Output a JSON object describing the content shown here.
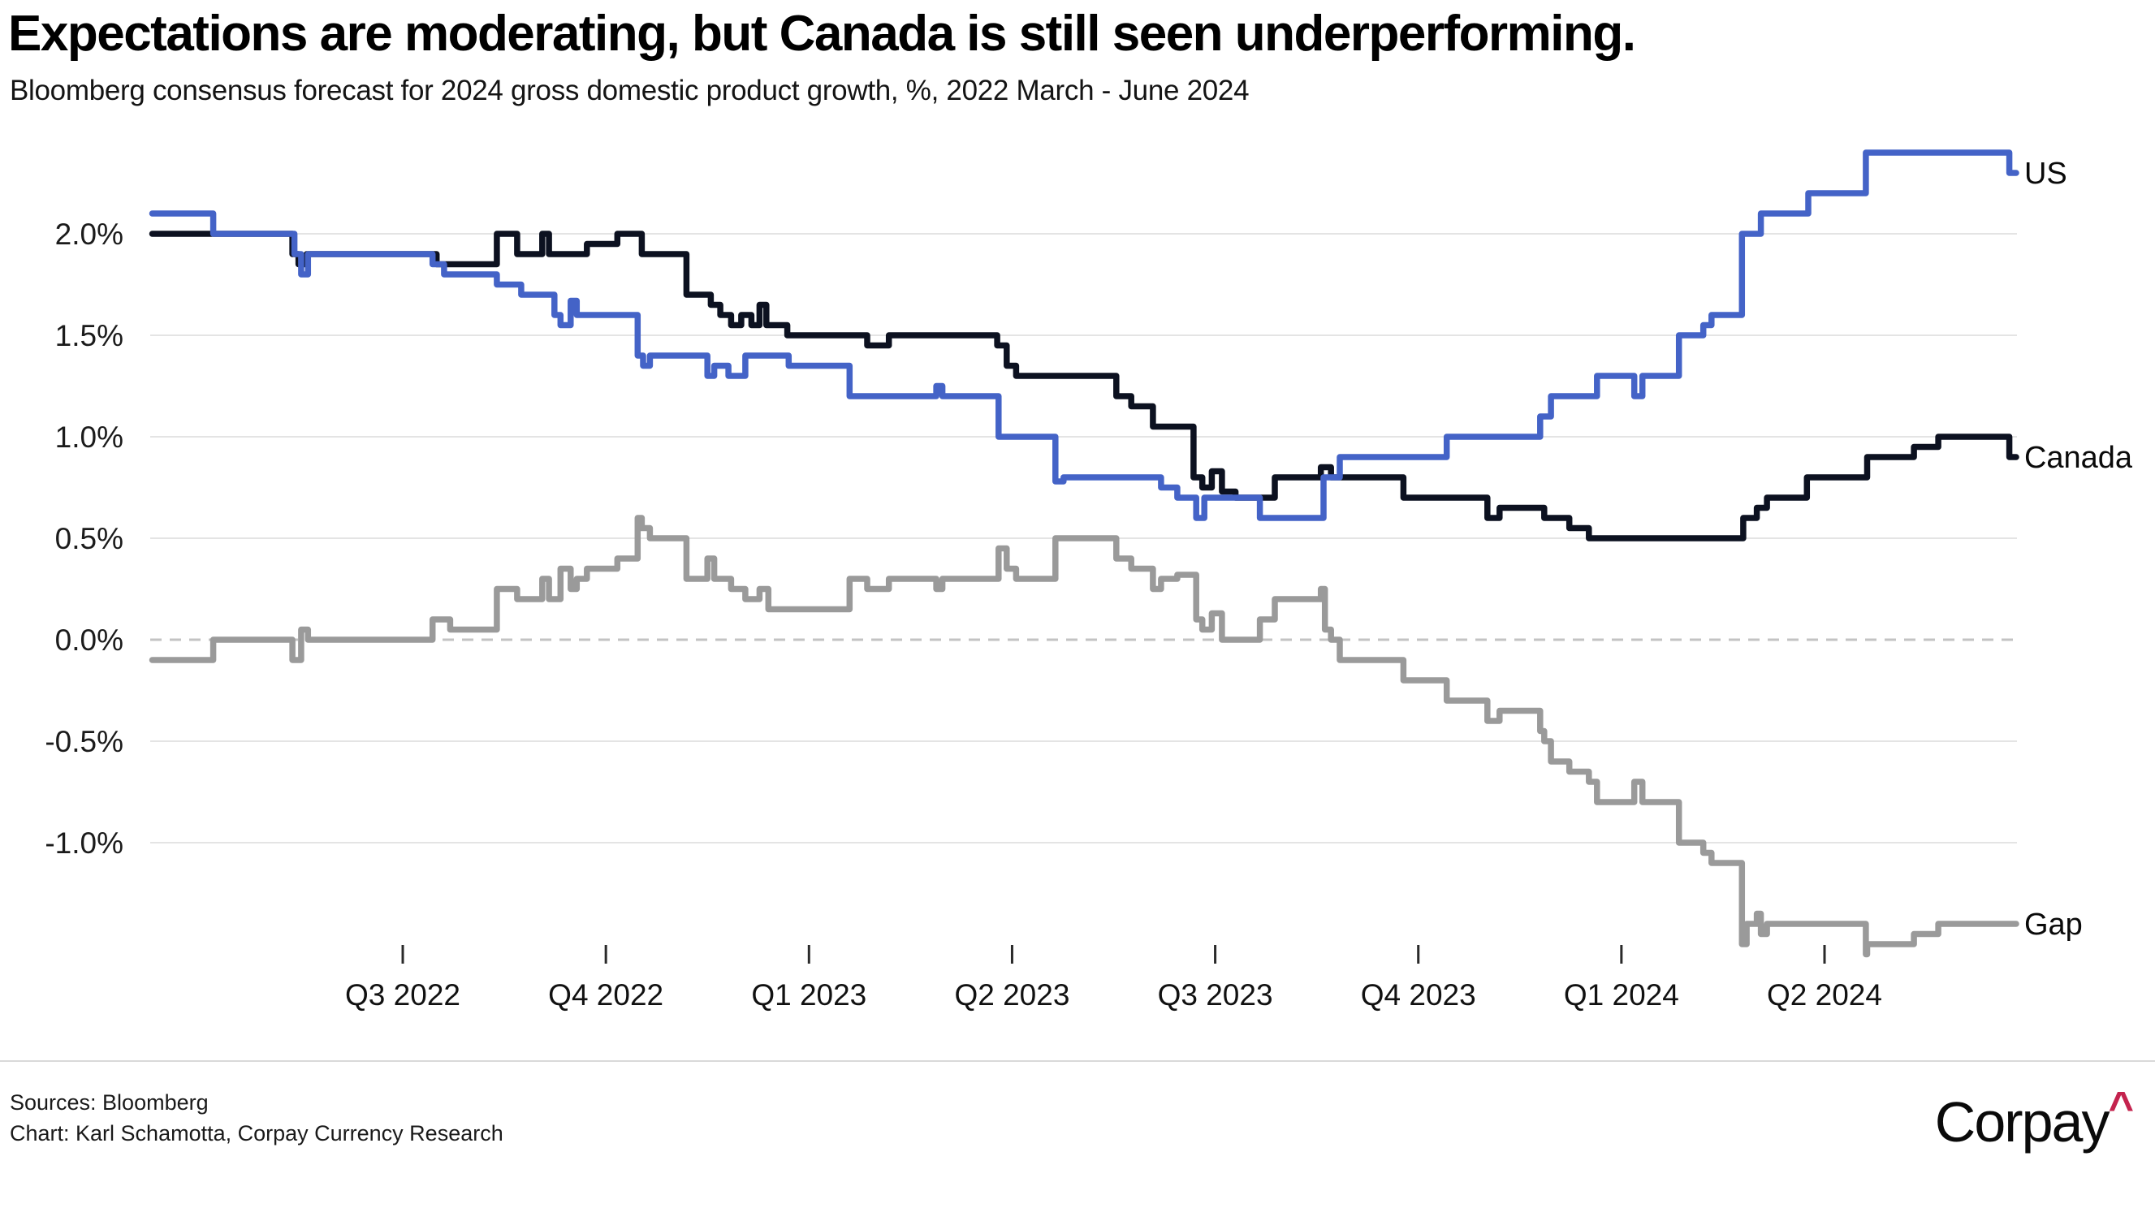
{
  "chart_data": {
    "type": "line",
    "title": "Expectations are moderating, but Canada is still seen underperforming.",
    "subtitle": "Bloomberg consensus forecast for 2024 gross domestic product growth, %, 2022 March - June 2024",
    "unit": "%",
    "x_range": [
      "March 2022",
      "June 2024"
    ],
    "ylim": [
      -1.65,
      2.45
    ],
    "grid": "horizontal",
    "legend_position": "line-end-labels",
    "y_axis": {
      "tick_values": [
        2.0,
        1.5,
        1.0,
        0.5,
        0.0,
        -0.5,
        -1.0
      ],
      "tick_labels": [
        "2.0%",
        "1.5%",
        "1.0%",
        "0.5%",
        "0.0%",
        "-0.5%",
        "-1.0%"
      ],
      "zero_line_style": "dashed"
    },
    "x_axis": {
      "unit": "months since March 2022",
      "ticks": [
        {
          "label": "Q3 2022",
          "t": 4
        },
        {
          "label": "Q4 2022",
          "t": 7
        },
        {
          "label": "Q1 2023",
          "t": 10
        },
        {
          "label": "Q2 2023",
          "t": 13
        },
        {
          "label": "Q3 2023",
          "t": 16
        },
        {
          "label": "Q4 2023",
          "t": 19
        },
        {
          "label": "Q1 2024",
          "t": 22
        },
        {
          "label": "Q2 2024",
          "t": 25
        }
      ]
    },
    "series": [
      {
        "name": "Gap",
        "color": "#9a9a9a",
        "points": [
          [
            0.3,
            -0.1
          ],
          [
            1.2,
            0.0
          ],
          [
            2.37,
            -0.1
          ],
          [
            2.5,
            0.05
          ],
          [
            2.6,
            0.0
          ],
          [
            4.44,
            0.1
          ],
          [
            4.7,
            0.05
          ],
          [
            5.39,
            0.25
          ],
          [
            5.69,
            0.2
          ],
          [
            6.06,
            0.3
          ],
          [
            6.16,
            0.2
          ],
          [
            6.33,
            0.35
          ],
          [
            6.48,
            0.25
          ],
          [
            6.57,
            0.3
          ],
          [
            6.72,
            0.35
          ],
          [
            7.17,
            0.4
          ],
          [
            7.47,
            0.6
          ],
          [
            7.53,
            0.55
          ],
          [
            7.65,
            0.5
          ],
          [
            8.19,
            0.3
          ],
          [
            8.5,
            0.4
          ],
          [
            8.6,
            0.3
          ],
          [
            8.85,
            0.25
          ],
          [
            9.06,
            0.2
          ],
          [
            9.27,
            0.25
          ],
          [
            9.4,
            0.15
          ],
          [
            10.6,
            0.3
          ],
          [
            10.86,
            0.25
          ],
          [
            11.18,
            0.3
          ],
          [
            11.88,
            0.25
          ],
          [
            11.97,
            0.3
          ],
          [
            12.8,
            0.45
          ],
          [
            12.92,
            0.35
          ],
          [
            13.06,
            0.3
          ],
          [
            13.64,
            0.5
          ],
          [
            14.54,
            0.4
          ],
          [
            14.76,
            0.35
          ],
          [
            15.08,
            0.25
          ],
          [
            15.2,
            0.3
          ],
          [
            15.44,
            0.32
          ],
          [
            15.72,
            0.1
          ],
          [
            15.81,
            0.05
          ],
          [
            15.95,
            0.13
          ],
          [
            16.1,
            0.0
          ],
          [
            16.66,
            0.1
          ],
          [
            16.88,
            0.2
          ],
          [
            17.56,
            0.25
          ],
          [
            17.62,
            0.05
          ],
          [
            17.71,
            0.0
          ],
          [
            17.84,
            -0.1
          ],
          [
            18.78,
            -0.2
          ],
          [
            19.42,
            -0.3
          ],
          [
            20.02,
            -0.4
          ],
          [
            20.2,
            -0.35
          ],
          [
            20.8,
            -0.45
          ],
          [
            20.86,
            -0.5
          ],
          [
            20.96,
            -0.6
          ],
          [
            21.23,
            -0.65
          ],
          [
            21.52,
            -0.7
          ],
          [
            21.64,
            -0.8
          ],
          [
            22.19,
            -0.7
          ],
          [
            22.31,
            -0.8
          ],
          [
            22.85,
            -1.0
          ],
          [
            23.21,
            -1.05
          ],
          [
            23.33,
            -1.1
          ],
          [
            23.78,
            -1.5
          ],
          [
            23.85,
            -1.4
          ],
          [
            24.0,
            -1.35
          ],
          [
            24.06,
            -1.45
          ],
          [
            24.15,
            -1.4
          ],
          [
            25.61,
            -1.55
          ],
          [
            25.63,
            -1.5
          ],
          [
            26.32,
            -1.45
          ],
          [
            26.68,
            -1.4
          ],
          [
            27.83,
            -1.4
          ]
        ]
      },
      {
        "name": "Canada",
        "color": "#0c1120",
        "points": [
          [
            0.3,
            2.0
          ],
          [
            2.37,
            1.9
          ],
          [
            2.46,
            1.85
          ],
          [
            2.58,
            1.9
          ],
          [
            4.5,
            1.85
          ],
          [
            5.39,
            2.0
          ],
          [
            5.69,
            1.9
          ],
          [
            6.06,
            2.0
          ],
          [
            6.16,
            1.9
          ],
          [
            6.72,
            1.95
          ],
          [
            7.17,
            2.0
          ],
          [
            7.53,
            1.9
          ],
          [
            8.19,
            1.7
          ],
          [
            8.55,
            1.65
          ],
          [
            8.69,
            1.6
          ],
          [
            8.85,
            1.55
          ],
          [
            9.0,
            1.6
          ],
          [
            9.15,
            1.55
          ],
          [
            9.27,
            1.65
          ],
          [
            9.37,
            1.55
          ],
          [
            9.68,
            1.5
          ],
          [
            10.86,
            1.45
          ],
          [
            11.18,
            1.5
          ],
          [
            12.78,
            1.45
          ],
          [
            12.92,
            1.35
          ],
          [
            13.06,
            1.3
          ],
          [
            14.54,
            1.2
          ],
          [
            14.76,
            1.15
          ],
          [
            15.08,
            1.05
          ],
          [
            15.68,
            0.8
          ],
          [
            15.81,
            0.75
          ],
          [
            15.95,
            0.83
          ],
          [
            16.1,
            0.73
          ],
          [
            16.3,
            0.7
          ],
          [
            16.88,
            0.8
          ],
          [
            17.56,
            0.85
          ],
          [
            17.71,
            0.8
          ],
          [
            18.78,
            0.7
          ],
          [
            20.02,
            0.6
          ],
          [
            20.2,
            0.65
          ],
          [
            20.86,
            0.6
          ],
          [
            21.23,
            0.55
          ],
          [
            21.52,
            0.5
          ],
          [
            23.8,
            0.6
          ],
          [
            24.0,
            0.65
          ],
          [
            24.15,
            0.7
          ],
          [
            24.74,
            0.8
          ],
          [
            25.63,
            0.9
          ],
          [
            26.32,
            0.95
          ],
          [
            26.68,
            1.0
          ],
          [
            27.73,
            0.9
          ],
          [
            27.83,
            0.9
          ]
        ]
      },
      {
        "name": "US",
        "color": "#4463c7",
        "points": [
          [
            0.3,
            2.1
          ],
          [
            1.2,
            2.0
          ],
          [
            2.4,
            1.9
          ],
          [
            2.5,
            1.8
          ],
          [
            2.6,
            1.9
          ],
          [
            4.44,
            1.85
          ],
          [
            4.61,
            1.8
          ],
          [
            5.39,
            1.75
          ],
          [
            5.75,
            1.7
          ],
          [
            6.24,
            1.6
          ],
          [
            6.33,
            1.55
          ],
          [
            6.48,
            1.67
          ],
          [
            6.57,
            1.6
          ],
          [
            7.47,
            1.4
          ],
          [
            7.55,
            1.35
          ],
          [
            7.65,
            1.4
          ],
          [
            8.5,
            1.3
          ],
          [
            8.6,
            1.35
          ],
          [
            8.81,
            1.3
          ],
          [
            9.06,
            1.4
          ],
          [
            9.7,
            1.35
          ],
          [
            10.6,
            1.2
          ],
          [
            11.88,
            1.25
          ],
          [
            11.97,
            1.2
          ],
          [
            12.8,
            1.0
          ],
          [
            13.64,
            0.78
          ],
          [
            13.76,
            0.8
          ],
          [
            15.2,
            0.75
          ],
          [
            15.44,
            0.7
          ],
          [
            15.72,
            0.6
          ],
          [
            15.84,
            0.7
          ],
          [
            16.66,
            0.6
          ],
          [
            17.6,
            0.8
          ],
          [
            17.84,
            0.9
          ],
          [
            19.42,
            1.0
          ],
          [
            20.8,
            1.1
          ],
          [
            20.96,
            1.2
          ],
          [
            21.64,
            1.3
          ],
          [
            22.19,
            1.2
          ],
          [
            22.31,
            1.3
          ],
          [
            22.85,
            1.5
          ],
          [
            23.21,
            1.55
          ],
          [
            23.33,
            1.6
          ],
          [
            23.78,
            2.0
          ],
          [
            24.06,
            2.1
          ],
          [
            24.76,
            2.2
          ],
          [
            25.61,
            2.4
          ],
          [
            27.73,
            2.3
          ],
          [
            27.83,
            2.3
          ]
        ]
      }
    ]
  },
  "footer": {
    "source": "Sources: Bloomberg",
    "credit": "Chart: Karl Schamotta, Corpay Currency Research",
    "logo": {
      "text": "Corpay",
      "caret": "^"
    }
  },
  "colors": {
    "us_line": "#4463c7",
    "canada_line": "#0c1120",
    "gap_line": "#9a9a9a",
    "gridline": "#e4e4e4",
    "zero_line": "#c3c3c3",
    "tick": "#2a2a2a",
    "logo_caret": "#c4234e"
  }
}
